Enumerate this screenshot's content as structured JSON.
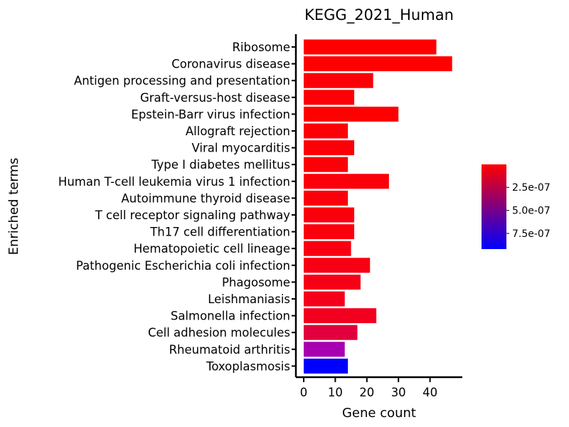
{
  "chart_data": {
    "type": "bar",
    "orientation": "horizontal",
    "title": "KEGG_2021_Human",
    "xlabel": "Gene count",
    "ylabel": "Enriched terms",
    "xlim": [
      0,
      50
    ],
    "xticks": [
      0,
      10,
      20,
      30,
      40
    ],
    "grid": false,
    "categories": [
      "Ribosome",
      "Coronavirus disease",
      "Antigen processing and presentation",
      "Graft-versus-host disease",
      "Epstein-Barr virus infection",
      "Allograft rejection",
      "Viral myocarditis",
      "Type I diabetes mellitus",
      "Human T-cell leukemia virus 1 infection",
      "Autoimmune thyroid disease",
      "T cell receptor signaling pathway",
      "Th17 cell differentiation",
      "Hematopoietic cell lineage",
      "Pathogenic Escherichia coli infection",
      "Phagosome",
      "Leishmaniasis",
      "Salmonella infection",
      "Cell adhesion molecules",
      "Rheumatoid arthritis",
      "Toxoplasmosis"
    ],
    "values": [
      42,
      47,
      22,
      16,
      30,
      14,
      16,
      14,
      27,
      14,
      16,
      16,
      15,
      21,
      18,
      13,
      23,
      17,
      13,
      14
    ],
    "bar_colors": [
      "#ff0000",
      "#ff0000",
      "#fc0007",
      "#fc0005",
      "#ff0000",
      "#fc0007",
      "#fc0007",
      "#fc0007",
      "#fb000a",
      "#fb000b",
      "#fa000c",
      "#fa000d",
      "#f90010",
      "#f80013",
      "#f60016",
      "#f5001a",
      "#f2001f",
      "#e1003d",
      "#a800b0",
      "#0000ff"
    ],
    "colorbar": {
      "ticks": [
        "2.5e-07",
        "5.0e-07",
        "7.5e-07"
      ],
      "tick_values": [
        2.5e-07,
        5e-07,
        7.5e-07
      ],
      "range": [
        1e-09,
        9.2e-07
      ],
      "color_low": "#ff0000",
      "color_high": "#0000ff"
    }
  }
}
